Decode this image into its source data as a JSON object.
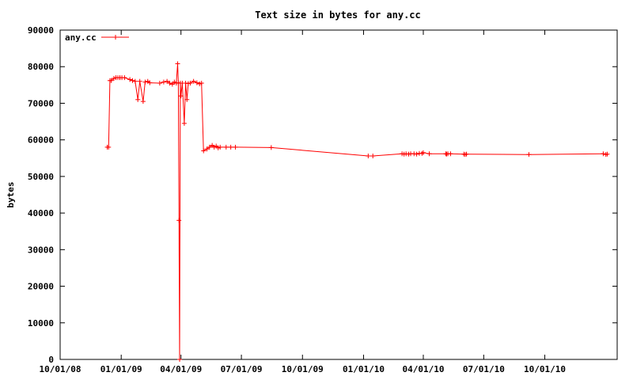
{
  "chart_data": {
    "type": "line",
    "title": "Text size in bytes for any.cc",
    "xlabel": "",
    "ylabel": "bytes",
    "legend_position": "top-left",
    "grid": false,
    "x_axis_type": "date",
    "xlim": [
      "2008-10-01",
      "2011-01-18"
    ],
    "ylim": [
      0,
      90000
    ],
    "x_ticks": [
      {
        "date": "2008-10-01",
        "label": "10/01/08"
      },
      {
        "date": "2009-01-01",
        "label": "01/01/09"
      },
      {
        "date": "2009-04-01",
        "label": "04/01/09"
      },
      {
        "date": "2009-07-01",
        "label": "07/01/09"
      },
      {
        "date": "2009-10-01",
        "label": "10/01/09"
      },
      {
        "date": "2010-01-01",
        "label": "01/01/10"
      },
      {
        "date": "2010-04-01",
        "label": "04/01/10"
      },
      {
        "date": "2010-07-01",
        "label": "07/01/10"
      },
      {
        "date": "2010-10-01",
        "label": "10/01/10"
      }
    ],
    "y_ticks": [
      0,
      10000,
      20000,
      30000,
      40000,
      50000,
      60000,
      70000,
      80000,
      90000
    ],
    "series": [
      {
        "name": "any.cc",
        "color": "#ff0000",
        "points": [
          [
            "2008-12-11",
            58000
          ],
          [
            "2008-12-13",
            58000
          ],
          [
            "2008-12-15",
            76200
          ],
          [
            "2008-12-17",
            76200
          ],
          [
            "2008-12-21",
            76800
          ],
          [
            "2008-12-24",
            77000
          ],
          [
            "2008-12-27",
            77000
          ],
          [
            "2008-12-30",
            77000
          ],
          [
            "2009-01-02",
            77000
          ],
          [
            "2009-01-06",
            77000
          ],
          [
            "2009-01-14",
            76500
          ],
          [
            "2009-01-18",
            76200
          ],
          [
            "2009-01-22",
            76000
          ],
          [
            "2009-01-26",
            71000
          ],
          [
            "2009-01-29",
            76000
          ],
          [
            "2009-02-03",
            70500
          ],
          [
            "2009-02-06",
            75800
          ],
          [
            "2009-02-10",
            76000
          ],
          [
            "2009-02-13",
            75600
          ],
          [
            "2009-02-28",
            75500
          ],
          [
            "2009-03-06",
            75800
          ],
          [
            "2009-03-11",
            76000
          ],
          [
            "2009-03-15",
            75500
          ],
          [
            "2009-03-19",
            75200
          ],
          [
            "2009-03-22",
            75800
          ],
          [
            "2009-03-25",
            75500
          ],
          [
            "2009-03-27",
            80800
          ],
          [
            "2009-03-28",
            75600
          ],
          [
            "2009-03-29",
            38000
          ],
          [
            "2009-03-30",
            0
          ],
          [
            "2009-03-31",
            75500
          ],
          [
            "2009-04-01",
            72000
          ],
          [
            "2009-04-03",
            75500
          ],
          [
            "2009-04-06",
            64500
          ],
          [
            "2009-04-08",
            75500
          ],
          [
            "2009-04-10",
            71000
          ],
          [
            "2009-04-12",
            75400
          ],
          [
            "2009-04-15",
            75500
          ],
          [
            "2009-04-20",
            76000
          ],
          [
            "2009-04-25",
            75600
          ],
          [
            "2009-04-29",
            75300
          ],
          [
            "2009-05-02",
            75500
          ],
          [
            "2009-05-05",
            57000
          ],
          [
            "2009-05-10",
            57500
          ],
          [
            "2009-05-14",
            58000
          ],
          [
            "2009-05-18",
            58500
          ],
          [
            "2009-05-21",
            58000
          ],
          [
            "2009-05-24",
            58300
          ],
          [
            "2009-05-27",
            57800
          ],
          [
            "2009-05-30",
            58000
          ],
          [
            "2009-06-08",
            58000
          ],
          [
            "2009-06-15",
            58000
          ],
          [
            "2009-06-22",
            58000
          ],
          [
            "2009-08-15",
            57900
          ],
          [
            "2010-01-08",
            55600
          ],
          [
            "2010-01-15",
            55600
          ],
          [
            "2010-02-28",
            56200
          ],
          [
            "2010-03-03",
            56100
          ],
          [
            "2010-03-06",
            56200
          ],
          [
            "2010-03-10",
            56100
          ],
          [
            "2010-03-13",
            56200
          ],
          [
            "2010-03-18",
            56200
          ],
          [
            "2010-03-22",
            56100
          ],
          [
            "2010-03-26",
            56300
          ],
          [
            "2010-03-30",
            56300
          ],
          [
            "2010-04-01",
            56500
          ],
          [
            "2010-04-10",
            56200
          ],
          [
            "2010-05-05",
            56200
          ],
          [
            "2010-05-06",
            56100
          ],
          [
            "2010-05-08",
            56200
          ],
          [
            "2010-05-12",
            56200
          ],
          [
            "2010-06-01",
            56100
          ],
          [
            "2010-06-03",
            56000
          ],
          [
            "2010-06-05",
            56100
          ],
          [
            "2010-09-07",
            56000
          ],
          [
            "2010-12-28",
            56200
          ],
          [
            "2011-01-01",
            56000
          ],
          [
            "2011-01-03",
            56100
          ]
        ]
      }
    ]
  }
}
